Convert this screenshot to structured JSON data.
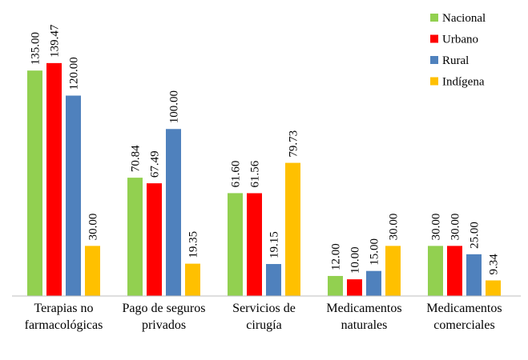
{
  "chart_data": {
    "type": "bar",
    "categories": [
      "Terapias no farmacológicas",
      "Pago de seguros privados",
      "Servicios de cirugía",
      "Medicamentos naturales",
      "Medicamentos comerciales"
    ],
    "series": [
      {
        "name": "Nacional",
        "color": "#92d050",
        "values": [
          135,
          70.84,
          61.6,
          12,
          30
        ],
        "value_labels": [
          "135.00",
          "70.84",
          "61.60",
          "12.00",
          "30.00"
        ]
      },
      {
        "name": "Urbano",
        "color": "#ff0000",
        "values": [
          139.47,
          67.49,
          61.56,
          10,
          30
        ],
        "value_labels": [
          "139.47",
          "67.49",
          "61.56",
          "10.00",
          "30.00"
        ]
      },
      {
        "name": "Rural",
        "color": "#4f81bd",
        "values": [
          120,
          100,
          19.15,
          15,
          25
        ],
        "value_labels": [
          "120.00",
          "100.00",
          "19.15",
          "15.00",
          "25.00"
        ]
      },
      {
        "name": "Indígena",
        "color": "#ffc000",
        "values": [
          30,
          19.35,
          79.73,
          30,
          9.34
        ],
        "value_labels": [
          "30.00",
          "19.35",
          "79.73",
          "30.00",
          "9.34"
        ]
      }
    ],
    "ylim": [
      0,
      160
    ],
    "legend": "top-right"
  }
}
